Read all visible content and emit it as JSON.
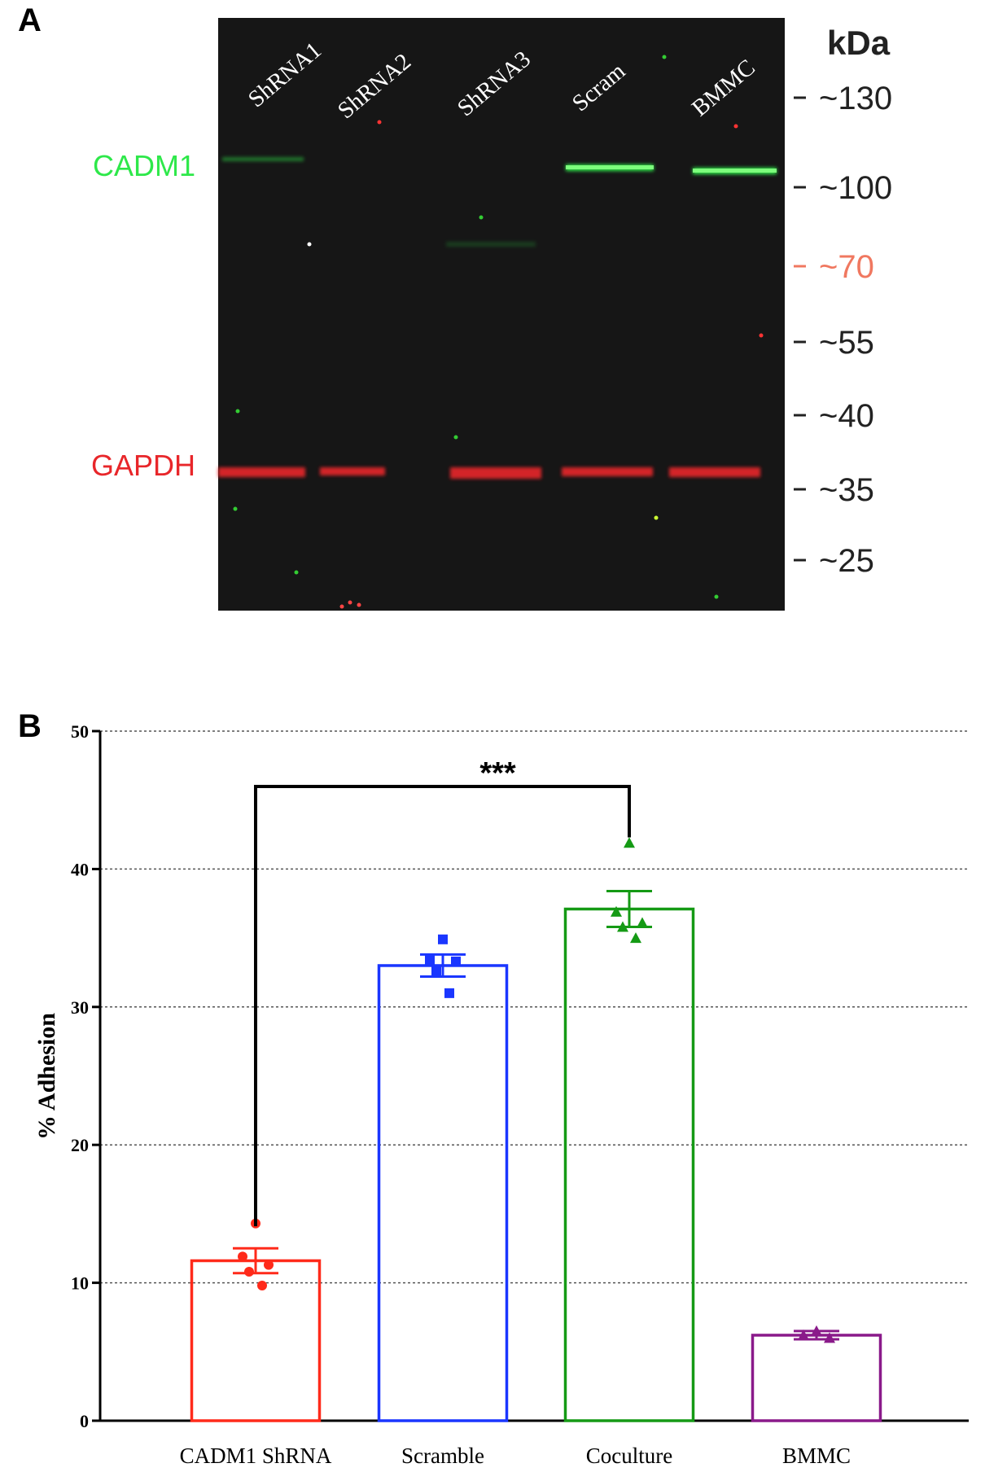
{
  "panel_a": {
    "letter": "A",
    "lanes": [
      "ShRNA1",
      "ShRNA2",
      "ShRNA3",
      "Scram",
      "BMMC"
    ],
    "bands": [
      {
        "name": "CADM1",
        "color": "#2ee84a"
      },
      {
        "name": "GAPDH",
        "color": "#e8262a"
      }
    ],
    "kda_unit": "kDa",
    "markers": [
      {
        "label": "~130",
        "color": "#222222"
      },
      {
        "label": "~100",
        "color": "#222222"
      },
      {
        "label": "~70",
        "color": "#f07860"
      },
      {
        "label": "~55",
        "color": "#222222"
      },
      {
        "label": "~40",
        "color": "#222222"
      },
      {
        "label": "~35",
        "color": "#222222"
      },
      {
        "label": "~25",
        "color": "#222222"
      }
    ]
  },
  "panel_b": {
    "letter": "B"
  },
  "chart_data": {
    "type": "bar",
    "title": "",
    "xlabel": "",
    "ylabel": "% Adhesion",
    "ylim": [
      0,
      50
    ],
    "yticks": [
      0,
      10,
      20,
      30,
      40,
      50
    ],
    "grid": true,
    "categories": [
      "CADM1 ShRNA",
      "Scramble",
      "Coculture",
      "BMMC"
    ],
    "values": [
      11.6,
      33.0,
      37.1,
      6.2
    ],
    "errors": [
      0.9,
      0.8,
      1.3,
      0.3
    ],
    "colors": [
      "#ff2a1a",
      "#1a36ff",
      "#159a15",
      "#8a1a8a"
    ],
    "marker_shapes": [
      "circle",
      "square",
      "triangle",
      "triangle"
    ],
    "points": [
      [
        14.3,
        11.9,
        11.3,
        10.8,
        9.8
      ],
      [
        34.9,
        33.4,
        33.3,
        32.6,
        31.0
      ],
      [
        41.9,
        36.9,
        36.1,
        35.8,
        35.0
      ],
      [
        6.5,
        6.2,
        6.0
      ]
    ],
    "significance": {
      "from": 0,
      "to": 2,
      "label": "***"
    }
  }
}
